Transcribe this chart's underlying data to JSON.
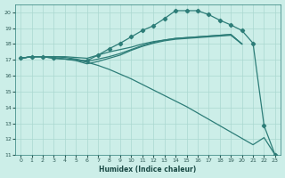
{
  "xlabel": "Humidex (Indice chaleur)",
  "bg_color": "#cceee8",
  "line_color": "#2d7d78",
  "grid_color": "#aad8d0",
  "xlim": [
    -0.5,
    23.5
  ],
  "ylim": [
    11,
    20.5
  ],
  "xticks": [
    0,
    1,
    2,
    3,
    4,
    5,
    6,
    7,
    8,
    9,
    10,
    11,
    12,
    13,
    14,
    15,
    16,
    17,
    18,
    19,
    20,
    21,
    22,
    23
  ],
  "yticks": [
    11,
    12,
    13,
    14,
    15,
    16,
    17,
    18,
    19,
    20
  ],
  "smooth_lines": [
    {
      "x": [
        0,
        1,
        2,
        3,
        4,
        5,
        6,
        7,
        8,
        9,
        10,
        11,
        12,
        13,
        14,
        15,
        16,
        17,
        18,
        19,
        20
      ],
      "y": [
        17.1,
        17.2,
        17.2,
        17.2,
        17.2,
        17.15,
        17.1,
        17.3,
        17.5,
        17.65,
        17.8,
        18.0,
        18.15,
        18.25,
        18.35,
        18.4,
        18.45,
        18.5,
        18.55,
        18.6,
        18.0
      ]
    },
    {
      "x": [
        0,
        1,
        2,
        3,
        4,
        5,
        6,
        7,
        8,
        9,
        10,
        11,
        12,
        13,
        14,
        15,
        16,
        17,
        18,
        19,
        20
      ],
      "y": [
        17.1,
        17.2,
        17.2,
        17.2,
        17.15,
        17.05,
        16.9,
        17.05,
        17.2,
        17.4,
        17.65,
        17.9,
        18.1,
        18.25,
        18.35,
        18.4,
        18.45,
        18.5,
        18.55,
        18.6,
        18.0
      ]
    },
    {
      "x": [
        0,
        1,
        2,
        3,
        4,
        5,
        6,
        7,
        8,
        9,
        10,
        11,
        12,
        13,
        14,
        15,
        16,
        17,
        18,
        19,
        20
      ],
      "y": [
        17.1,
        17.2,
        17.2,
        17.15,
        17.05,
        16.95,
        16.75,
        16.9,
        17.1,
        17.3,
        17.6,
        17.85,
        18.05,
        18.2,
        18.3,
        18.35,
        18.4,
        18.45,
        18.5,
        18.55,
        18.0
      ]
    }
  ],
  "diag_line": {
    "x": [
      0,
      1,
      2,
      3,
      4,
      5,
      6,
      7,
      8,
      9,
      10,
      11,
      12,
      13,
      14,
      15,
      16,
      17,
      18,
      19,
      20,
      21,
      22,
      23
    ],
    "y": [
      17.1,
      17.2,
      17.2,
      17.1,
      17.05,
      17.0,
      16.85,
      16.65,
      16.4,
      16.1,
      15.8,
      15.45,
      15.1,
      14.75,
      14.4,
      14.05,
      13.65,
      13.25,
      12.85,
      12.45,
      12.05,
      11.65,
      12.1,
      11.0
    ]
  },
  "marker_line": {
    "x": [
      0,
      1,
      2,
      3,
      4,
      5,
      6,
      7,
      8,
      9,
      10,
      11,
      12,
      13,
      14,
      15,
      16,
      17,
      18,
      19,
      20,
      21,
      22,
      23
    ],
    "y": [
      17.1,
      17.2,
      17.2,
      17.1,
      17.05,
      17.0,
      16.95,
      17.3,
      17.7,
      18.05,
      18.45,
      18.85,
      19.15,
      19.6,
      20.1,
      20.1,
      20.1,
      19.85,
      19.5,
      19.2,
      18.85,
      18.05,
      12.85,
      11.0
    ],
    "marker_x": [
      0,
      1,
      2,
      3,
      6,
      7,
      8,
      9,
      10,
      11,
      12,
      13,
      14,
      15,
      16,
      17,
      18,
      19,
      20,
      21,
      22,
      23
    ],
    "marker_y": [
      17.1,
      17.2,
      17.2,
      17.1,
      16.95,
      17.3,
      17.7,
      18.05,
      18.45,
      18.85,
      19.15,
      19.6,
      20.1,
      20.1,
      20.1,
      19.85,
      19.5,
      19.2,
      18.85,
      18.05,
      12.85,
      11.0
    ]
  }
}
